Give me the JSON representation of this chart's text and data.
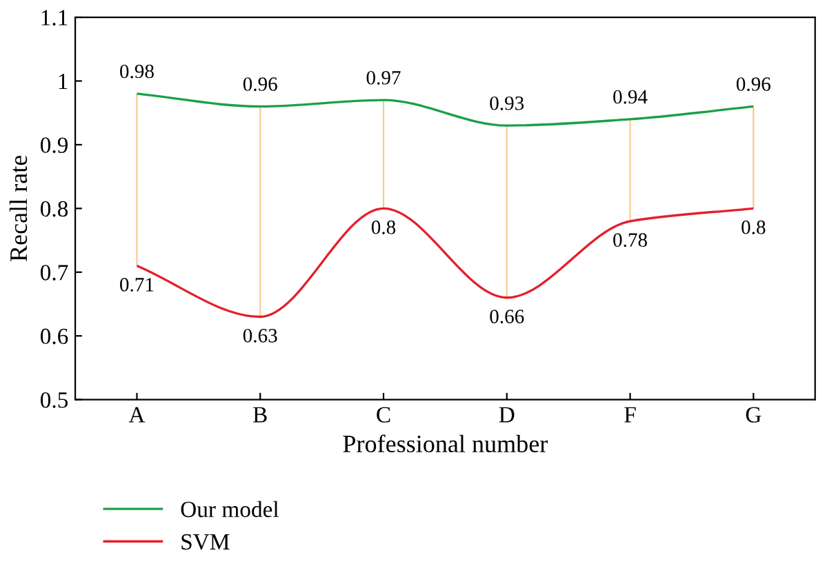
{
  "chart_data": {
    "type": "line",
    "xlabel": "Professional number",
    "ylabel": "Recall rate",
    "categories": [
      "A",
      "B",
      "C",
      "D",
      "F",
      "G"
    ],
    "series": [
      {
        "name": "Our model",
        "color": "#1aa04a",
        "values": [
          0.98,
          0.96,
          0.97,
          0.93,
          0.94,
          0.96
        ],
        "value_labels": [
          "0.98",
          "0.96",
          "0.97",
          "0.93",
          "0.94",
          "0.96"
        ]
      },
      {
        "name": "SVM",
        "color": "#e3202b",
        "values": [
          0.71,
          0.63,
          0.8,
          0.66,
          0.78,
          0.8
        ],
        "value_labels": [
          "0.71",
          "0.63",
          "0.8",
          "0.66",
          "0.78",
          "0.8"
        ]
      },
      {
        "type": "bar",
        "color": "#f7c98a",
        "base": [
          0.71,
          0.63,
          0.8,
          0.66,
          0.78,
          0.8
        ],
        "values": [
          0.27,
          0.33,
          0.17,
          0.27,
          0.16,
          0.16
        ]
      }
    ],
    "ylim": [
      0.5,
      1.1
    ],
    "yticks": [
      0.5,
      0.6,
      0.7,
      0.8,
      0.9,
      1,
      1.1
    ],
    "grid": false,
    "legend": "bottom left",
    "marker": "none",
    "line_style": "solid"
  }
}
